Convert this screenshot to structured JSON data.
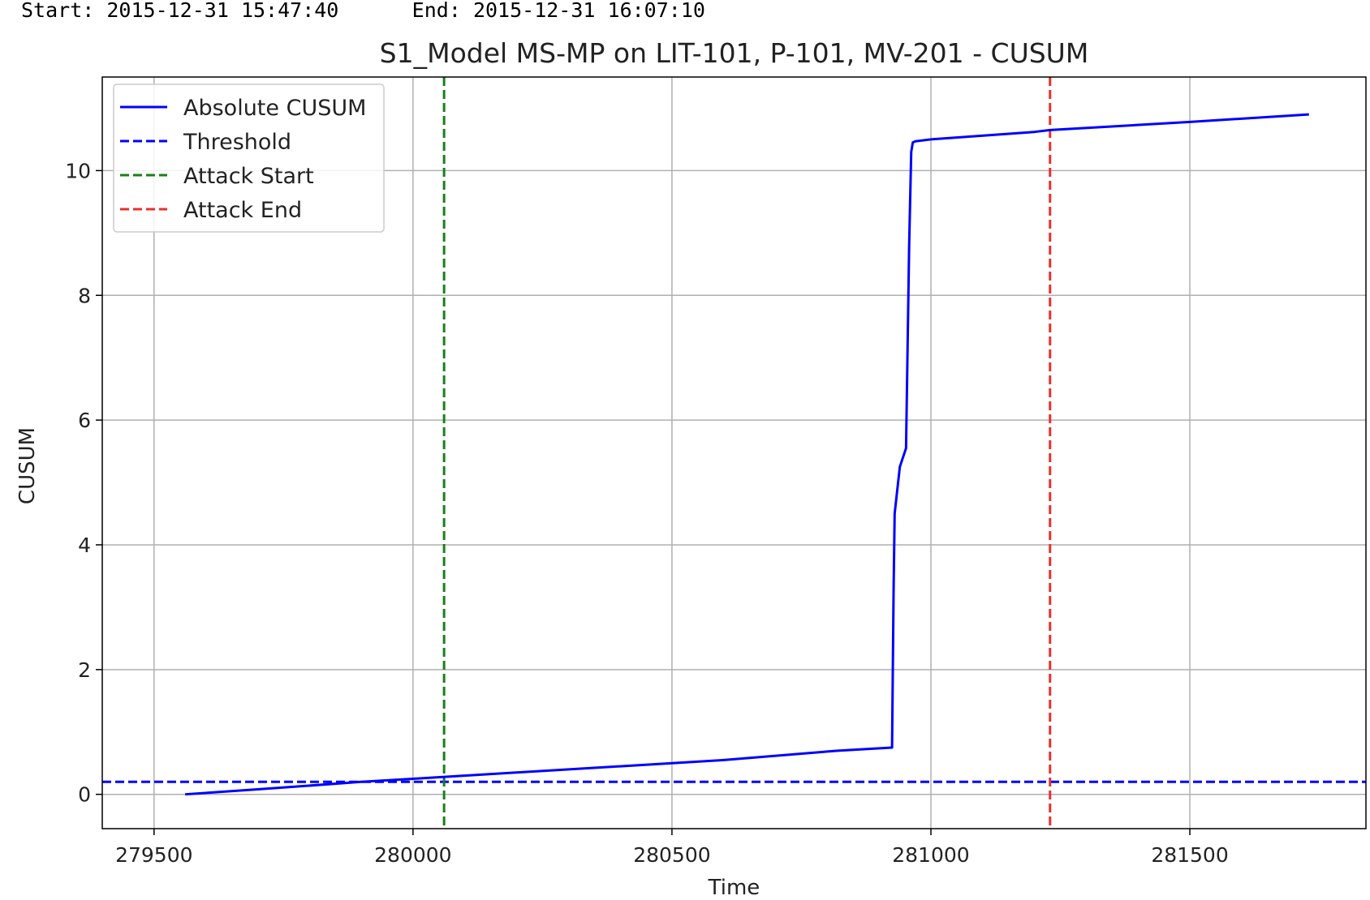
{
  "header": {
    "start_label": "Start:",
    "start_value": "2015-12-31 15:47:40",
    "end_label": "End:",
    "end_value": "2015-12-31 16:07:10"
  },
  "chart_data": {
    "type": "line",
    "title": "S1_Model MS-MP on LIT-101, P-101, MV-201  -  CUSUM",
    "xlabel": "Time",
    "ylabel": "CUSUM",
    "xlim": [
      279400,
      281840
    ],
    "ylim": [
      -0.55,
      11.5
    ],
    "xticks": [
      279500,
      280000,
      280500,
      281000,
      281500
    ],
    "yticks": [
      0,
      2,
      4,
      6,
      8,
      10
    ],
    "grid": true,
    "legend_position": "top-left",
    "series": [
      {
        "name": "Absolute CUSUM",
        "style": "solid",
        "color": "#0000ff",
        "x": [
          279560,
          279700,
          279900,
          280000,
          280100,
          280200,
          280400,
          280600,
          280820,
          280925,
          280928,
          280930,
          280940,
          280952,
          280958,
          280962,
          280965,
          280970,
          280980,
          281000,
          281200,
          281230,
          281500,
          281730
        ],
        "y": [
          0.0,
          0.08,
          0.2,
          0.25,
          0.3,
          0.35,
          0.45,
          0.55,
          0.7,
          0.75,
          3.3,
          4.5,
          5.25,
          5.55,
          8.8,
          10.3,
          10.45,
          10.47,
          10.48,
          10.5,
          10.62,
          10.65,
          10.78,
          10.9
        ]
      },
      {
        "name": "Threshold",
        "style": "dashed",
        "color": "#0000ff",
        "y": 0.2
      },
      {
        "name": "Attack Start",
        "style": "dashed",
        "color": "#1a7f1a",
        "x": 280060
      },
      {
        "name": "Attack End",
        "style": "dashed",
        "color": "#e8312a",
        "x": 281230
      }
    ]
  }
}
